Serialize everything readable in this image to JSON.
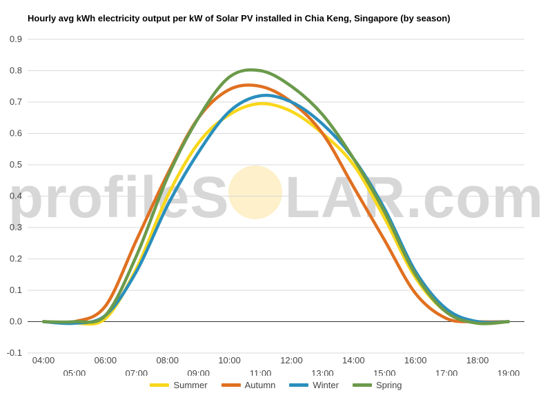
{
  "chart_data": {
    "type": "line",
    "title": "Hourly avg kWh electricity output per kW of Solar PV installed in Chia Keng, Singapore (by season)",
    "x_labels": [
      "04:00",
      "05:00",
      "06:00",
      "07:00",
      "08:00",
      "09:00",
      "10:00",
      "11:00",
      "12:00",
      "13:00",
      "14:00",
      "15:00",
      "16:00",
      "17:00",
      "18:00",
      "19:00"
    ],
    "ylim": [
      -0.1,
      0.9
    ],
    "yticks": [
      "-0.1",
      "0.0",
      "0.1",
      "0.2",
      "0.3",
      "0.4",
      "0.5",
      "0.6",
      "0.7",
      "0.8",
      "0.9"
    ],
    "grid": true,
    "legend_position": "bottom",
    "series": [
      {
        "name": "Summer",
        "color": "#f9d71c",
        "values": [
          0.0,
          -0.005,
          0.01,
          0.17,
          0.4,
          0.57,
          0.66,
          0.695,
          0.67,
          0.6,
          0.5,
          0.33,
          0.14,
          0.03,
          -0.005,
          0.0
        ]
      },
      {
        "name": "Autumn",
        "color": "#e07020",
        "values": [
          0.0,
          0.0,
          0.05,
          0.26,
          0.47,
          0.65,
          0.74,
          0.75,
          0.7,
          0.6,
          0.43,
          0.26,
          0.09,
          0.01,
          0.0,
          0.0
        ]
      },
      {
        "name": "Winter",
        "color": "#2a8fbd",
        "values": [
          0.0,
          -0.005,
          0.02,
          0.16,
          0.37,
          0.54,
          0.67,
          0.72,
          0.7,
          0.63,
          0.52,
          0.36,
          0.16,
          0.04,
          0.0,
          0.0
        ]
      },
      {
        "name": "Spring",
        "color": "#6b9a4b",
        "values": [
          0.0,
          0.0,
          0.02,
          0.21,
          0.46,
          0.65,
          0.78,
          0.8,
          0.75,
          0.66,
          0.52,
          0.35,
          0.15,
          0.03,
          -0.005,
          0.0
        ]
      }
    ]
  },
  "watermark": {
    "left": "profileS",
    "right": "LAR.com"
  },
  "colors": {
    "grid": "#d9d9d9",
    "zero_line": "#333333",
    "background": "#ffffff"
  }
}
